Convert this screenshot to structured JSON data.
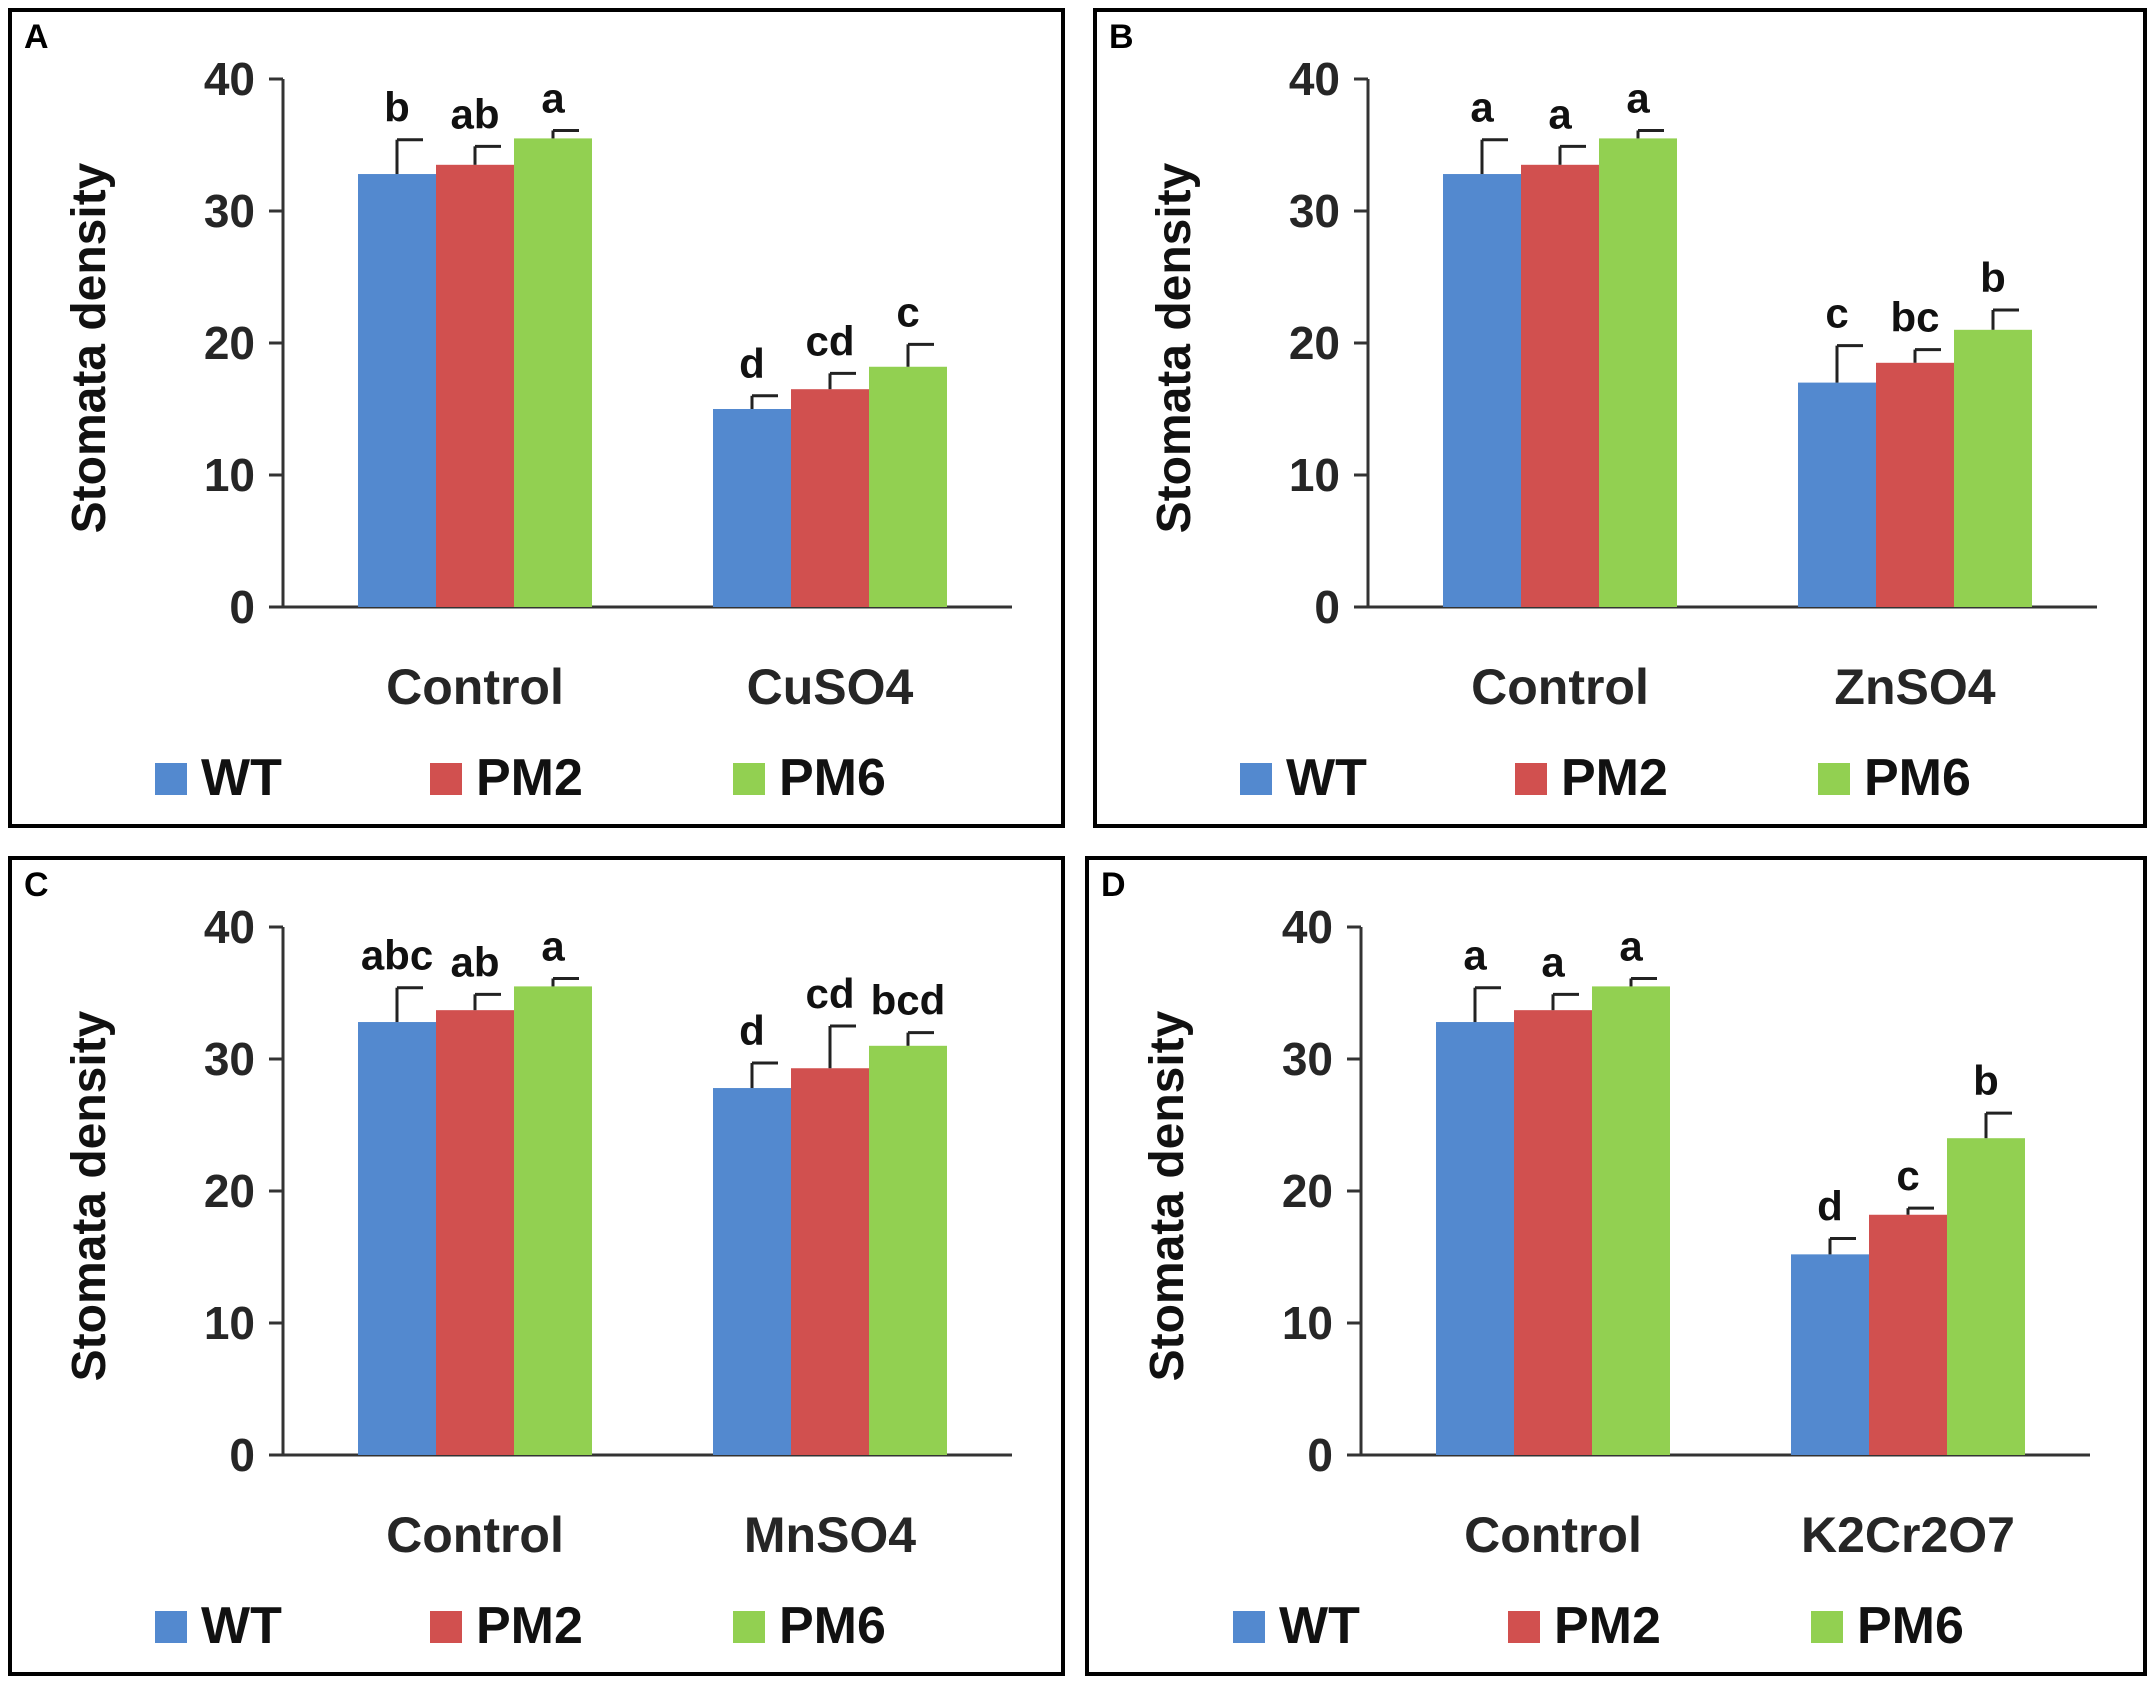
{
  "colors": {
    "WT": "#5389cf",
    "PM2": "#d1504f",
    "PM6": "#92d051"
  },
  "chart_data": [
    {
      "panel": "A",
      "type": "bar",
      "categories": [
        "Control",
        "CuSO4"
      ],
      "ylabel": "Stomata density",
      "ylim": [
        0,
        40
      ],
      "yticks": [
        0,
        10,
        20,
        30,
        40
      ],
      "series": [
        {
          "name": "WT",
          "values": [
            32.8,
            15.0
          ],
          "errors": [
            2.6,
            1.0
          ],
          "labels": [
            "b",
            "d"
          ]
        },
        {
          "name": "PM2",
          "values": [
            33.5,
            16.5
          ],
          "errors": [
            1.4,
            1.2
          ],
          "labels": [
            "ab",
            "cd"
          ]
        },
        {
          "name": "PM6",
          "values": [
            35.5,
            18.2
          ],
          "errors": [
            0.6,
            1.7
          ],
          "labels": [
            "a",
            "c"
          ]
        }
      ]
    },
    {
      "panel": "B",
      "type": "bar",
      "categories": [
        "Control",
        "ZnSO4"
      ],
      "ylabel": "Stomata density",
      "ylim": [
        0,
        40
      ],
      "yticks": [
        0,
        10,
        20,
        30,
        40
      ],
      "series": [
        {
          "name": "WT",
          "values": [
            32.8,
            17.0
          ],
          "errors": [
            2.6,
            2.8
          ],
          "labels": [
            "a",
            "c"
          ]
        },
        {
          "name": "PM2",
          "values": [
            33.5,
            18.5
          ],
          "errors": [
            1.4,
            1.0
          ],
          "labels": [
            "a",
            "bc"
          ]
        },
        {
          "name": "PM6",
          "values": [
            35.5,
            21.0
          ],
          "errors": [
            0.6,
            1.5
          ],
          "labels": [
            "a",
            "b"
          ]
        }
      ]
    },
    {
      "panel": "C",
      "type": "bar",
      "categories": [
        "Control",
        "MnSO4"
      ],
      "ylabel": "Stomata density",
      "ylim": [
        0,
        40
      ],
      "yticks": [
        0,
        10,
        20,
        30,
        40
      ],
      "series": [
        {
          "name": "WT",
          "values": [
            32.8,
            27.8
          ],
          "errors": [
            2.6,
            1.9
          ],
          "labels": [
            "abc",
            "d"
          ]
        },
        {
          "name": "PM2",
          "values": [
            33.7,
            29.3
          ],
          "errors": [
            1.2,
            3.2
          ],
          "labels": [
            "ab",
            "cd"
          ]
        },
        {
          "name": "PM6",
          "values": [
            35.5,
            31.0
          ],
          "errors": [
            0.6,
            1.0
          ],
          "labels": [
            "a",
            "bcd"
          ]
        }
      ]
    },
    {
      "panel": "D",
      "type": "bar",
      "categories": [
        "Control",
        "K2Cr2O7"
      ],
      "ylabel": "Stomata density",
      "ylim": [
        0,
        40
      ],
      "yticks": [
        0,
        10,
        20,
        30,
        40
      ],
      "series": [
        {
          "name": "WT",
          "values": [
            32.8,
            15.2
          ],
          "errors": [
            2.6,
            1.2
          ],
          "labels": [
            "a",
            "d"
          ]
        },
        {
          "name": "PM2",
          "values": [
            33.7,
            18.2
          ],
          "errors": [
            1.2,
            0.5
          ],
          "labels": [
            "a",
            "c"
          ]
        },
        {
          "name": "PM6",
          "values": [
            35.5,
            24.0
          ],
          "errors": [
            0.6,
            1.9
          ],
          "labels": [
            "a",
            "b"
          ]
        }
      ]
    }
  ]
}
